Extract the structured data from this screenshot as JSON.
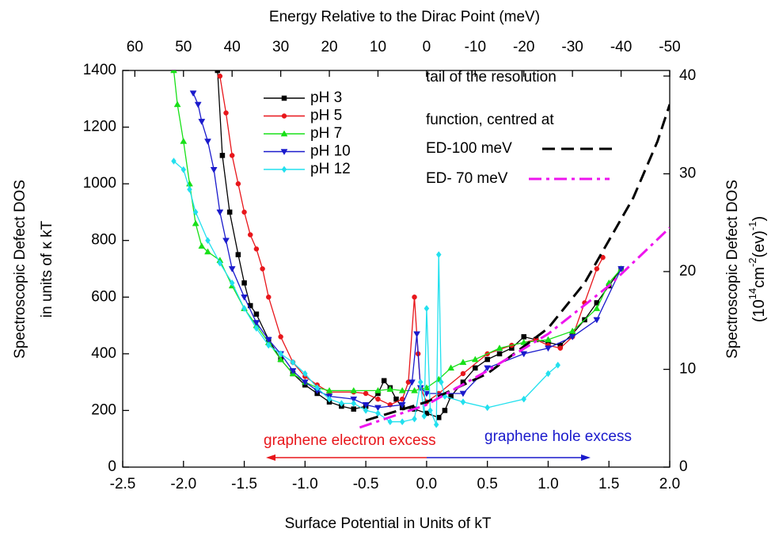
{
  "chart_data": {
    "type": "line",
    "title": "Energy Relative to the Dirac Point (meV)",
    "xlabel": "Surface Potential in Units of kT",
    "ylabel": [
      "Spectroscopic Defect DOS",
      "in units of κ kT"
    ],
    "y2label": "Spectroscopic Defect DOS",
    "y2label_units": [
      "(10",
      "14",
      "cm",
      "-2",
      "(ev)",
      "-1",
      ")"
    ],
    "xlim": [
      -2.5,
      2.0
    ],
    "xticks": [
      -2.5,
      {
        "value": -2.0,
        "label": "-2.0"
      },
      -1.5,
      {
        "value": -1.0,
        "label": "-1.0"
      },
      -0.5,
      {
        "value": 0,
        "label": "0.0"
      },
      0.5,
      {
        "value": 1.0,
        "label": "1.0"
      },
      1.5,
      {
        "value": 2.0,
        "label": "2.0"
      }
    ],
    "x2lim": [
      62.5,
      -50
    ],
    "x2ticks": [
      60,
      50,
      40,
      30,
      20,
      10,
      0,
      -10,
      -20,
      -30,
      -40,
      -50
    ],
    "ylim": [
      0,
      1400
    ],
    "yticks": [
      0,
      200,
      400,
      600,
      800,
      1000,
      1200,
      1400
    ],
    "y2lim": [
      0,
      40.57
    ],
    "y2ticks": [
      0,
      10,
      20,
      30,
      40
    ],
    "legend2_title": [
      "tail of the resolution",
      "function, centred at"
    ],
    "annotations": [
      "graphene electron excess",
      "graphene hole excess"
    ],
    "series": [
      {
        "name": "pH 3",
        "color": "#000000",
        "marker": "square",
        "x": [
          -1.72,
          -1.68,
          -1.62,
          -1.55,
          -1.5,
          -1.45,
          -1.4,
          -1.3,
          -1.2,
          -1.1,
          -1.0,
          -0.9,
          -0.8,
          -0.7,
          -0.6,
          -0.5,
          -0.4,
          -0.35,
          -0.3,
          -0.25,
          -0.2,
          -0.1,
          0.0,
          0.1,
          0.15,
          0.2,
          0.3,
          0.4,
          0.5,
          0.6,
          0.7,
          0.8,
          0.9,
          1.0,
          1.1,
          1.2,
          1.3,
          1.4,
          1.5,
          1.6
        ],
        "values": [
          1400,
          1100,
          900,
          750,
          650,
          570,
          540,
          450,
          380,
          330,
          290,
          260,
          230,
          215,
          205,
          215,
          260,
          305,
          280,
          240,
          210,
          205,
          190,
          175,
          200,
          250,
          300,
          350,
          380,
          400,
          420,
          460,
          450,
          440,
          430,
          470,
          520,
          580,
          640,
          700
        ]
      },
      {
        "name": "pH 5",
        "color": "#e8161b",
        "marker": "circle",
        "x": [
          -1.7,
          -1.65,
          -1.6,
          -1.55,
          -1.5,
          -1.45,
          -1.4,
          -1.35,
          -1.3,
          -1.2,
          -1.1,
          -1.0,
          -0.9,
          -0.8,
          -0.6,
          -0.5,
          -0.4,
          -0.3,
          -0.2,
          -0.15,
          -0.1,
          -0.07,
          -0.05,
          0.0,
          0.1,
          0.3,
          0.5,
          0.7,
          0.9,
          1.0,
          1.1,
          1.2,
          1.3,
          1.4,
          1.45
        ],
        "values": [
          1380,
          1250,
          1100,
          1000,
          900,
          820,
          770,
          700,
          600,
          460,
          370,
          320,
          290,
          265,
          265,
          260,
          240,
          220,
          240,
          300,
          600,
          400,
          280,
          230,
          260,
          330,
          400,
          430,
          450,
          430,
          420,
          460,
          580,
          700,
          740
        ]
      },
      {
        "name": "pH 7",
        "color": "#18e018",
        "marker": "triangle-up",
        "x": [
          -2.08,
          -2.05,
          -2.0,
          -1.95,
          -1.9,
          -1.85,
          -1.8,
          -1.7,
          -1.6,
          -1.5,
          -1.4,
          -1.3,
          -1.2,
          -1.1,
          -1.0,
          -0.9,
          -0.8,
          -0.6,
          -0.4,
          -0.3,
          -0.2,
          -0.1,
          0.0,
          0.1,
          0.2,
          0.3,
          0.4,
          0.6,
          0.8,
          1.0,
          1.2,
          1.4,
          1.5,
          1.6
        ],
        "values": [
          1400,
          1280,
          1150,
          1000,
          860,
          780,
          760,
          730,
          640,
          560,
          500,
          440,
          380,
          330,
          300,
          280,
          270,
          270,
          270,
          275,
          270,
          270,
          280,
          310,
          350,
          370,
          380,
          420,
          440,
          450,
          480,
          560,
          650,
          700
        ]
      },
      {
        "name": "pH 10",
        "color": "#1a1acc",
        "marker": "triangle-down",
        "x": [
          -1.92,
          -1.88,
          -1.85,
          -1.8,
          -1.75,
          -1.7,
          -1.65,
          -1.6,
          -1.5,
          -1.4,
          -1.3,
          -1.2,
          -1.1,
          -1.0,
          -0.9,
          -0.8,
          -0.6,
          -0.5,
          -0.4,
          -0.2,
          -0.12,
          -0.08,
          -0.05,
          0.0,
          0.3,
          0.5,
          0.8,
          1.0,
          1.2,
          1.4,
          1.6
        ],
        "values": [
          1320,
          1280,
          1220,
          1150,
          1050,
          900,
          800,
          700,
          600,
          510,
          450,
          400,
          340,
          300,
          270,
          250,
          240,
          220,
          210,
          220,
          300,
          470,
          280,
          260,
          260,
          350,
          400,
          420,
          460,
          520,
          700
        ]
      },
      {
        "name": "pH 12",
        "color": "#22e0ee",
        "marker": "diamond",
        "x": [
          -2.08,
          -2.0,
          -1.95,
          -1.9,
          -1.8,
          -1.7,
          -1.6,
          -1.5,
          -1.4,
          -1.3,
          -1.2,
          -1.1,
          -1.0,
          -0.9,
          -0.8,
          -0.7,
          -0.6,
          -0.5,
          -0.4,
          -0.3,
          -0.2,
          -0.1,
          -0.05,
          -0.02,
          0.0,
          0.03,
          0.08,
          0.1,
          0.12,
          0.15,
          0.3,
          0.5,
          0.8,
          1.0,
          1.08
        ],
        "values": [
          1080,
          1050,
          980,
          900,
          800,
          720,
          650,
          560,
          490,
          430,
          400,
          370,
          330,
          280,
          240,
          225,
          225,
          200,
          190,
          160,
          160,
          170,
          300,
          180,
          560,
          200,
          150,
          750,
          300,
          250,
          230,
          210,
          240,
          330,
          360
        ]
      },
      {
        "name": "ED-100 meV",
        "color": "#000000",
        "dash": "dash",
        "x": [
          -0.5,
          0.0,
          0.5,
          1.0,
          1.3,
          1.5,
          1.7,
          1.9,
          2.0
        ],
        "values": [
          165,
          230,
          330,
          490,
          650,
          800,
          950,
          1150,
          1280
        ]
      },
      {
        "name": "ED- 70 meV",
        "color": "#ee14ee",
        "dash": "dashdot",
        "x": [
          -0.55,
          0.0,
          0.5,
          1.0,
          1.5,
          2.0
        ],
        "values": [
          140,
          220,
          340,
          470,
          640,
          845
        ]
      }
    ]
  }
}
